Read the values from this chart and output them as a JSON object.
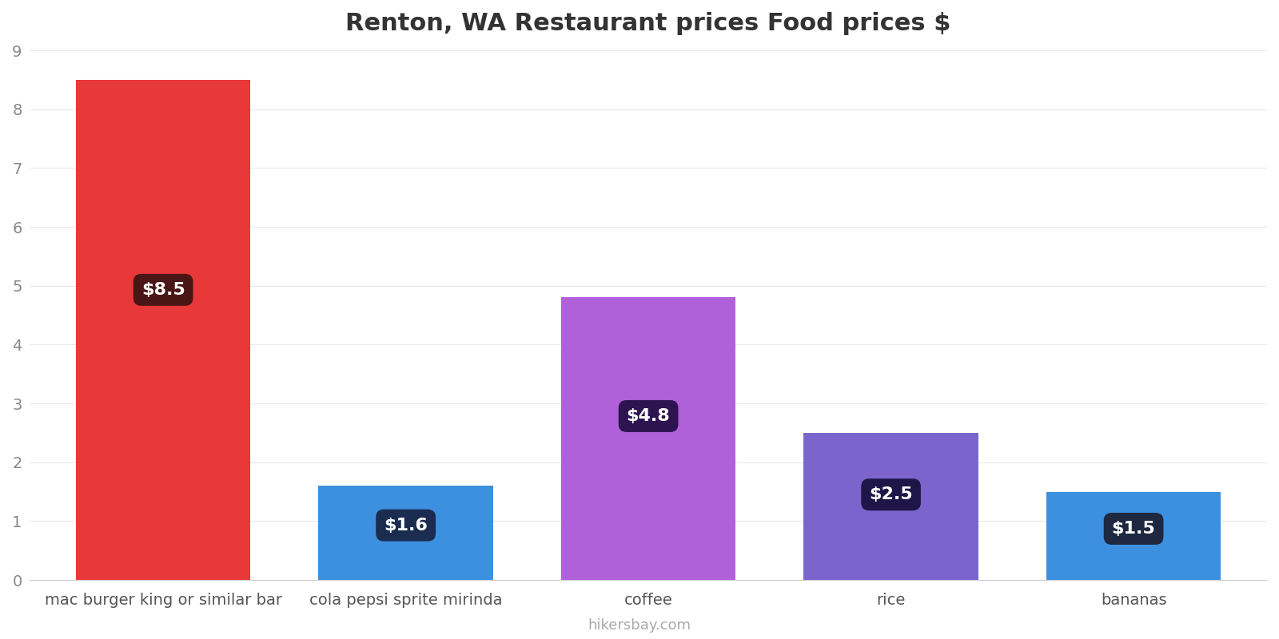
{
  "title": "Renton, WA Restaurant prices Food prices $",
  "categories": [
    "mac burger king or similar bar",
    "cola pepsi sprite mirinda",
    "coffee",
    "rice",
    "bananas"
  ],
  "values": [
    8.5,
    1.6,
    4.8,
    2.5,
    1.5
  ],
  "bar_colors": [
    "#e8383a",
    "#3d8fe0",
    "#b060d8",
    "#7b65cc",
    "#3d8fe0"
  ],
  "label_texts": [
    "$8.5",
    "$1.6",
    "$4.8",
    "$2.5",
    "$1.5"
  ],
  "label_bg_colors": [
    "#4a1515",
    "#1a2d50",
    "#2d1450",
    "#1e1648",
    "#1e2840"
  ],
  "ylim": [
    0,
    9
  ],
  "yticks": [
    0,
    1,
    2,
    3,
    4,
    5,
    6,
    7,
    8,
    9
  ],
  "watermark": "hikersbay.com",
  "title_fontsize": 22,
  "tick_fontsize": 14,
  "label_fontsize": 16,
  "watermark_fontsize": 13,
  "background_color": "#ffffff",
  "grid_color": "#e8e8f0"
}
